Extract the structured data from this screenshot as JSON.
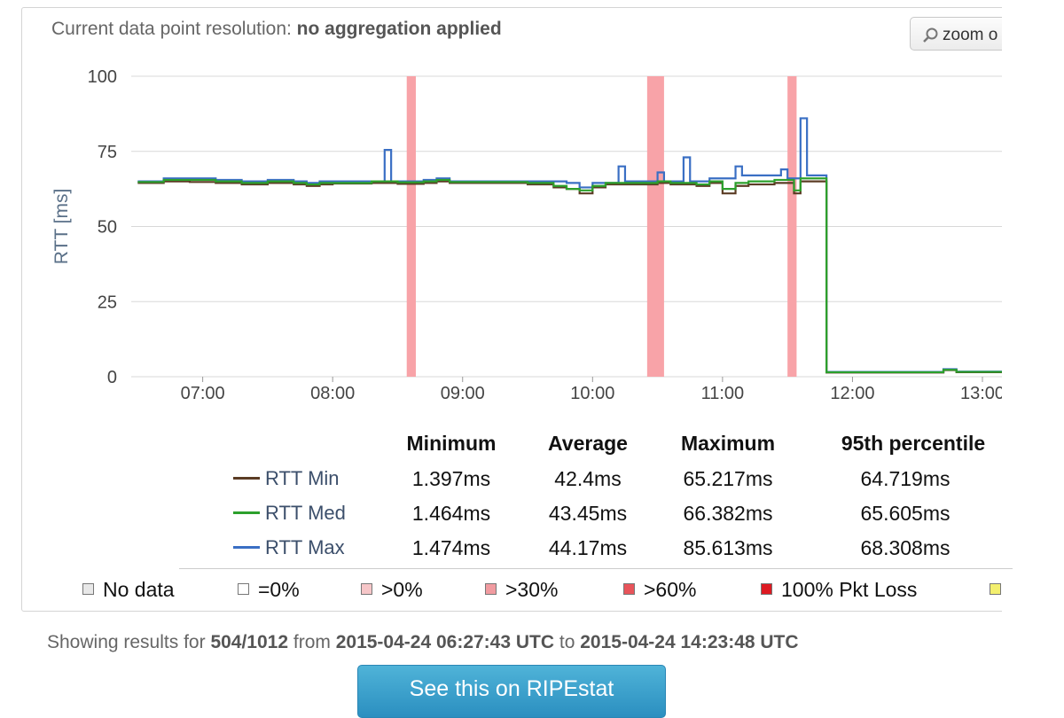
{
  "header": {
    "resolution_label": "Current data point resolution:",
    "resolution_value": "no aggregation applied",
    "zoom_label": "zoom o"
  },
  "chart_data": {
    "type": "line",
    "ylabel": "RTT [ms]",
    "ylim": [
      0,
      100
    ],
    "yticks": [
      0,
      25,
      50,
      75,
      100
    ],
    "x_range_hours": [
      6.45,
      13.15
    ],
    "xticks": [
      "07:00",
      "08:00",
      "09:00",
      "10:00",
      "11:00",
      "12:00",
      "13:00"
    ],
    "xtick_hours": [
      7,
      8,
      9,
      10,
      11,
      12,
      13
    ],
    "grid": true,
    "loss_bands": [
      {
        "start": 8.57,
        "end": 8.64,
        "color": "#f8a3a8"
      },
      {
        "start": 10.42,
        "end": 10.55,
        "color": "#f8a3a8"
      },
      {
        "start": 11.5,
        "end": 11.57,
        "color": "#f8a3a8"
      }
    ],
    "series": [
      {
        "name": "RTT Min",
        "color": "#5b3c24",
        "points": [
          [
            6.5,
            64.5
          ],
          [
            6.7,
            65
          ],
          [
            6.9,
            64.8
          ],
          [
            7.1,
            64.5
          ],
          [
            7.3,
            64
          ],
          [
            7.5,
            64.5
          ],
          [
            7.7,
            64
          ],
          [
            7.8,
            63.5
          ],
          [
            7.9,
            64
          ],
          [
            8.0,
            64.3
          ],
          [
            8.3,
            64.5
          ],
          [
            8.5,
            64.2
          ],
          [
            8.7,
            64.5
          ],
          [
            8.8,
            65
          ],
          [
            8.9,
            64.5
          ],
          [
            9.2,
            64.5
          ],
          [
            9.5,
            64
          ],
          [
            9.7,
            63
          ],
          [
            9.8,
            62.5
          ],
          [
            9.9,
            61
          ],
          [
            10.0,
            63
          ],
          [
            10.1,
            64
          ],
          [
            10.3,
            64
          ],
          [
            10.5,
            64.5
          ],
          [
            10.6,
            64
          ],
          [
            10.8,
            63.5
          ],
          [
            10.9,
            64.5
          ],
          [
            11.0,
            61
          ],
          [
            11.1,
            63.5
          ],
          [
            11.2,
            64
          ],
          [
            11.4,
            64.5
          ],
          [
            11.55,
            61
          ],
          [
            11.6,
            65
          ],
          [
            11.75,
            65
          ],
          [
            11.8,
            1.4
          ],
          [
            12.0,
            1.4
          ],
          [
            12.5,
            1.4
          ],
          [
            12.7,
            2.2
          ],
          [
            12.8,
            1.5
          ],
          [
            13.15,
            1.5
          ]
        ]
      },
      {
        "name": "RTT Med",
        "color": "#2ca02c",
        "points": [
          [
            6.5,
            64.8
          ],
          [
            6.7,
            65.5
          ],
          [
            6.9,
            65.5
          ],
          [
            7.1,
            65
          ],
          [
            7.3,
            64.5
          ],
          [
            7.5,
            65
          ],
          [
            7.7,
            64.5
          ],
          [
            7.8,
            64
          ],
          [
            7.9,
            64.5
          ],
          [
            8.0,
            64.5
          ],
          [
            8.3,
            65
          ],
          [
            8.5,
            64.7
          ],
          [
            8.7,
            65
          ],
          [
            8.8,
            65.5
          ],
          [
            8.9,
            64.8
          ],
          [
            9.2,
            64.8
          ],
          [
            9.5,
            64.5
          ],
          [
            9.7,
            63.5
          ],
          [
            9.8,
            62.5
          ],
          [
            9.9,
            62
          ],
          [
            10.0,
            63.5
          ],
          [
            10.1,
            64.5
          ],
          [
            10.3,
            64.5
          ],
          [
            10.5,
            65
          ],
          [
            10.6,
            64.5
          ],
          [
            10.8,
            64
          ],
          [
            10.9,
            65
          ],
          [
            11.0,
            62.5
          ],
          [
            11.1,
            64.5
          ],
          [
            11.2,
            65
          ],
          [
            11.4,
            65.5
          ],
          [
            11.55,
            62
          ],
          [
            11.6,
            66
          ],
          [
            11.75,
            66
          ],
          [
            11.8,
            1.5
          ],
          [
            12.0,
            1.5
          ],
          [
            12.5,
            1.5
          ],
          [
            12.7,
            2.3
          ],
          [
            12.8,
            1.6
          ],
          [
            13.15,
            1.6
          ]
        ]
      },
      {
        "name": "RTT Max",
        "color": "#3a6fc4",
        "points": [
          [
            6.5,
            65
          ],
          [
            6.7,
            66
          ],
          [
            6.9,
            66
          ],
          [
            7.1,
            65.5
          ],
          [
            7.3,
            65
          ],
          [
            7.5,
            65.5
          ],
          [
            7.7,
            65
          ],
          [
            7.8,
            64.5
          ],
          [
            7.9,
            65
          ],
          [
            8.0,
            65
          ],
          [
            8.35,
            65
          ],
          [
            8.4,
            75.5
          ],
          [
            8.45,
            65
          ],
          [
            8.7,
            65.5
          ],
          [
            8.8,
            66
          ],
          [
            8.9,
            65
          ],
          [
            9.2,
            65
          ],
          [
            9.5,
            65
          ],
          [
            9.7,
            65
          ],
          [
            9.8,
            64.5
          ],
          [
            9.9,
            63
          ],
          [
            10.0,
            64.5
          ],
          [
            10.2,
            70
          ],
          [
            10.25,
            65
          ],
          [
            10.4,
            65
          ],
          [
            10.5,
            68
          ],
          [
            10.55,
            65
          ],
          [
            10.7,
            73
          ],
          [
            10.75,
            65
          ],
          [
            10.9,
            66
          ],
          [
            11.1,
            70
          ],
          [
            11.15,
            67
          ],
          [
            11.3,
            67
          ],
          [
            11.45,
            69
          ],
          [
            11.5,
            66
          ],
          [
            11.6,
            86
          ],
          [
            11.65,
            67
          ],
          [
            11.75,
            67
          ],
          [
            11.8,
            1.6
          ],
          [
            12.0,
            1.6
          ],
          [
            12.5,
            1.6
          ],
          [
            12.7,
            2.5
          ],
          [
            12.8,
            1.7
          ],
          [
            13.15,
            1.7
          ]
        ]
      }
    ]
  },
  "stats": {
    "columns": [
      "Minimum",
      "Average",
      "Maximum",
      "95th percentile"
    ],
    "rows": [
      {
        "label": "RTT Min",
        "color": "#5b3c24",
        "values": [
          "1.397ms",
          "42.4ms",
          "65.217ms",
          "64.719ms"
        ]
      },
      {
        "label": "RTT Med",
        "color": "#2ca02c",
        "values": [
          "1.464ms",
          "43.45ms",
          "66.382ms",
          "65.605ms"
        ]
      },
      {
        "label": "RTT Max",
        "color": "#3a6fc4",
        "values": [
          "1.474ms",
          "44.17ms",
          "85.613ms",
          "68.308ms"
        ]
      }
    ]
  },
  "legend": [
    {
      "label": "No data",
      "color": "#e8e8e8"
    },
    {
      "label": "=0%",
      "color": "#ffffff"
    },
    {
      "label": ">0%",
      "color": "#f6c6c8"
    },
    {
      "label": ">30%",
      "color": "#f19ba0"
    },
    {
      "label": ">60%",
      "color": "#e8545a"
    },
    {
      "label": "100% Pkt Loss",
      "color": "#dd1a22"
    },
    {
      "label": "",
      "color": "#f3ef6e"
    }
  ],
  "footer": {
    "prefix": "Showing results for",
    "probe": "504/1012",
    "from_word": "from",
    "start": "2015-04-24 06:27:43 UTC",
    "to_word": "to",
    "end": "2015-04-24 14:23:48 UTC",
    "button_label": "See this on RIPEstat"
  }
}
